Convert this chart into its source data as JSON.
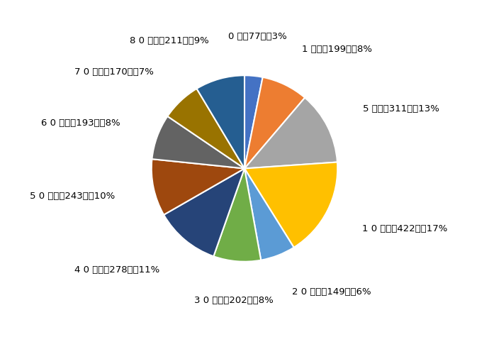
{
  "values": [
    77,
    199,
    311,
    422,
    149,
    202,
    278,
    243,
    193,
    170,
    211
  ],
  "colors": [
    "#4472C4",
    "#ED7D31",
    "#A5A5A5",
    "#FFC000",
    "#5B9BD5",
    "#70AD47",
    "#264478",
    "#9E480E",
    "#636363",
    "#997300",
    "#255E91"
  ],
  "label_texts": [
    "0 歳，77人，3%",
    "1 歳～，199人，8%",
    "5 歳～，311人，13%",
    "1 0 歳～，422人，17%",
    "2 0 歳～，149人，6%",
    "3 0 歳～，202人，8%",
    "4 0 歳～，278人，11%",
    "5 0 歳～，243人，10%",
    "6 0 歳～，193人，8%",
    "7 0 歳～，170人，7%",
    "8 0 歳～，211人，9%"
  ],
  "background_color": "#FFFFFF",
  "label_fontsize": 9.5,
  "startangle": 90
}
